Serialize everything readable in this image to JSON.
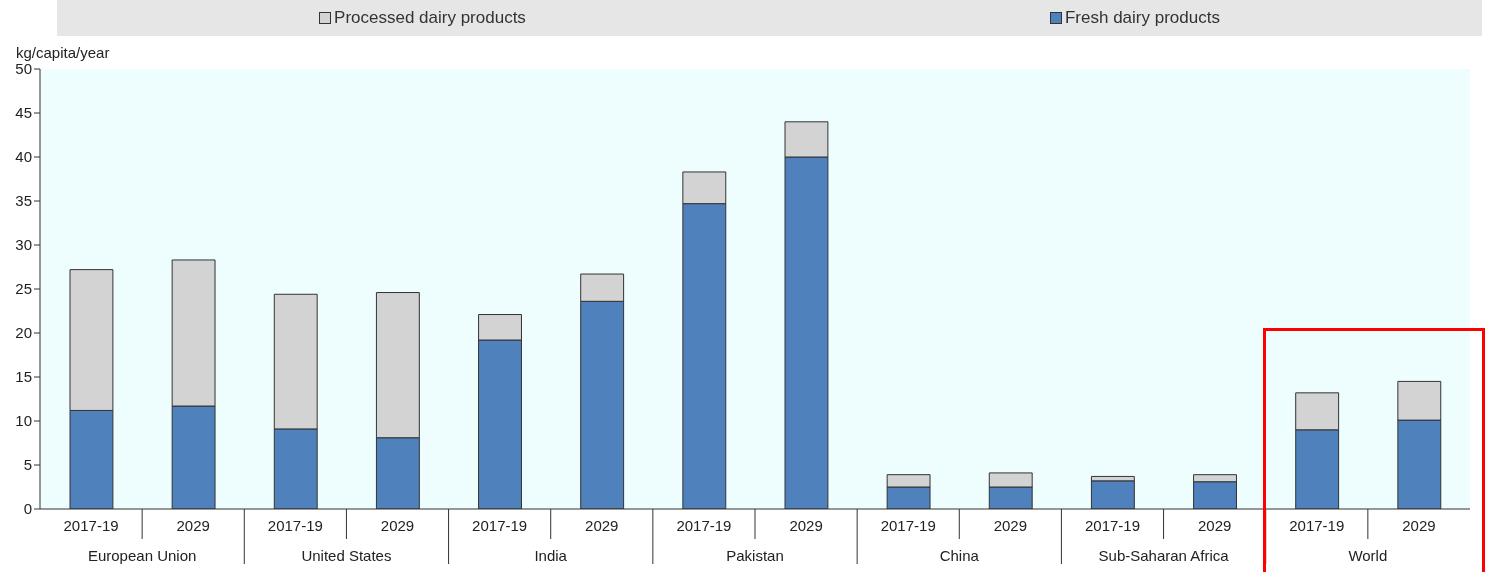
{
  "chart_data": {
    "type": "bar",
    "stacked": true,
    "ylabel": "kg/capita/year",
    "categories": [
      "2017-19",
      "2029",
      "2017-19",
      "2029",
      "2017-19",
      "2029",
      "2017-19",
      "2029",
      "2017-19",
      "2029",
      "2017-19",
      "2029",
      "2017-19",
      "2029"
    ],
    "annotations": [
      "European Union",
      "United States",
      "India",
      "Pakistan",
      "China",
      "Sub-Saharan Africa",
      "World"
    ],
    "series": [
      {
        "name": "Fresh dairy products",
        "color": "#4f81bd",
        "values": [
          11.2,
          11.7,
          9.1,
          8.1,
          19.2,
          23.6,
          34.7,
          40.0,
          2.5,
          2.5,
          3.2,
          3.1,
          9.0,
          10.1
        ]
      },
      {
        "name": "Processed dairy products",
        "color": "#d3d3d3",
        "values": [
          16.0,
          16.6,
          15.3,
          16.5,
          2.9,
          3.1,
          3.6,
          4.0,
          1.4,
          1.6,
          0.5,
          0.8,
          4.2,
          4.4
        ]
      }
    ],
    "ylim": [
      0,
      50
    ],
    "yticks": [
      0,
      5,
      10,
      15,
      20,
      25,
      30,
      35,
      40,
      45,
      50
    ],
    "grid": false,
    "legend": "top"
  }
}
